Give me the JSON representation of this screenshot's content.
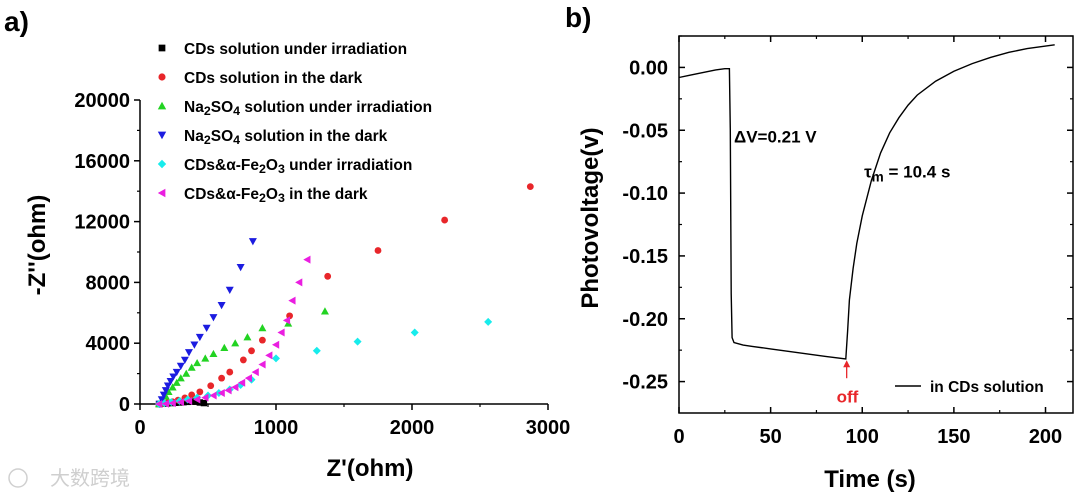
{
  "watermark": "大数跨境",
  "chart_data": [
    {
      "panel_label": "a)",
      "type": "scatter",
      "title": "",
      "xlabel": "Z'(ohm)",
      "ylabel": "-Z''(ohm)",
      "xlim": [
        0,
        3000
      ],
      "ylim": [
        0,
        20000
      ],
      "xticks": [
        0,
        1000,
        2000,
        3000
      ],
      "yticks": [
        0,
        4000,
        8000,
        12000,
        16000,
        20000
      ],
      "legend_position": "top-center",
      "series": [
        {
          "name": "CDs solution under irradiation",
          "name_parts": [
            "CDs solution under irradiation"
          ],
          "marker": "square",
          "color": "#000000",
          "x": [
            140,
            170,
            200,
            230,
            260,
            290,
            320,
            350,
            380,
            410,
            440,
            470
          ],
          "y": [
            0,
            20,
            40,
            60,
            80,
            100,
            120,
            140,
            160,
            150,
            100,
            60
          ]
        },
        {
          "name": "CDs solution in the dark",
          "name_parts": [
            "CDs solution in the dark"
          ],
          "marker": "circle",
          "color": "#e8262a",
          "x": [
            140,
            170,
            200,
            240,
            280,
            330,
            380,
            440,
            520,
            600,
            660,
            760,
            820,
            900,
            1100,
            1380,
            1750,
            2240,
            2870
          ],
          "y": [
            0,
            30,
            80,
            150,
            250,
            400,
            600,
            800,
            1200,
            1700,
            2100,
            2900,
            3500,
            4200,
            5800,
            8400,
            10100,
            12100,
            14300
          ]
        },
        {
          "name": "Na2SO4 solution under irradiation",
          "name_parts": [
            "Na",
            "2",
            "SO",
            "4",
            " solution under irradiation"
          ],
          "marker": "triangle-up",
          "color": "#22d322",
          "x": [
            140,
            170,
            190,
            210,
            240,
            270,
            300,
            340,
            380,
            420,
            480,
            540,
            620,
            700,
            790,
            900,
            1090,
            1360
          ],
          "y": [
            0,
            200,
            500,
            800,
            1100,
            1400,
            1700,
            2000,
            2400,
            2700,
            3000,
            3300,
            3700,
            4000,
            4400,
            5000,
            5300,
            6100
          ]
        },
        {
          "name": "Na2SO4 solution in the dark",
          "name_parts": [
            "Na",
            "2",
            "SO",
            "4",
            " solution in the dark"
          ],
          "marker": "triangle-down",
          "color": "#1c1ce0",
          "x": [
            145,
            160,
            175,
            190,
            205,
            225,
            245,
            270,
            300,
            330,
            360,
            400,
            440,
            490,
            540,
            600,
            660,
            740,
            830
          ],
          "y": [
            0,
            300,
            600,
            900,
            1200,
            1500,
            1800,
            2100,
            2500,
            2900,
            3400,
            3900,
            4400,
            5000,
            5700,
            6500,
            7500,
            9000,
            10700
          ]
        },
        {
          "name": "CDs&α-Fe2O3 under irradiation",
          "name_parts": [
            "CDs&α-Fe",
            "2",
            "O",
            "3",
            " under irradiation"
          ],
          "marker": "diamond",
          "color": "#17ecec",
          "x": [
            140,
            180,
            230,
            290,
            350,
            420,
            500,
            580,
            660,
            740,
            820,
            1000,
            1300,
            1600,
            2020,
            2560
          ],
          "y": [
            0,
            50,
            120,
            200,
            300,
            420,
            560,
            720,
            950,
            1250,
            1600,
            3000,
            3500,
            4100,
            4700,
            5400
          ]
        },
        {
          "name": "CDs&α-Fe2O3 in the dark",
          "name_parts": [
            "CDs&α-Fe",
            "2",
            "O",
            "3",
            " in the dark"
          ],
          "marker": "triangle-left",
          "color": "#ea1ee0",
          "x": [
            140,
            190,
            240,
            300,
            360,
            420,
            480,
            540,
            600,
            650,
            700,
            750,
            800,
            850,
            900,
            950,
            1000,
            1040,
            1080,
            1120,
            1170,
            1230
          ],
          "y": [
            0,
            20,
            60,
            120,
            200,
            300,
            420,
            560,
            720,
            900,
            1100,
            1400,
            1700,
            2100,
            2600,
            3200,
            3900,
            4700,
            5500,
            6800,
            8000,
            9500
          ]
        }
      ]
    },
    {
      "panel_label": "b)",
      "type": "line",
      "title": "",
      "xlabel": "Time (s)",
      "ylabel": "Photovoltage(v)",
      "xlim": [
        0,
        215
      ],
      "ylim": [
        -0.275,
        0.025
      ],
      "xticks": [
        0,
        50,
        100,
        150,
        200
      ],
      "yticks": [
        0.0,
        -0.05,
        -0.1,
        -0.15,
        -0.2,
        -0.25
      ],
      "ytick_labels": [
        "0.00",
        "-0.05",
        "-0.10",
        "-0.15",
        "-0.20",
        "-0.25"
      ],
      "legend_position": "bottom-right",
      "series": [
        {
          "name": "in CDs solution",
          "color": "#000000",
          "x": [
            0,
            5,
            10,
            15,
            20,
            25,
            27.5,
            28,
            28.5,
            29,
            30,
            35,
            40,
            50,
            60,
            70,
            80,
            91,
            92,
            93,
            95,
            97,
            100,
            105,
            110,
            115,
            120,
            125,
            130,
            140,
            150,
            160,
            170,
            180,
            190,
            205
          ],
          "y": [
            -0.008,
            -0.0065,
            -0.005,
            -0.0035,
            -0.002,
            -0.001,
            -0.001,
            -0.05,
            -0.18,
            -0.215,
            -0.219,
            -0.221,
            -0.222,
            -0.224,
            -0.226,
            -0.228,
            -0.23,
            -0.232,
            -0.21,
            -0.185,
            -0.16,
            -0.14,
            -0.118,
            -0.09,
            -0.068,
            -0.052,
            -0.04,
            -0.03,
            -0.022,
            -0.011,
            -0.003,
            0.003,
            0.008,
            0.012,
            0.015,
            0.018
          ]
        }
      ],
      "annotations": [
        {
          "text": "ΔV=0.21 V",
          "x": 30,
          "y": -0.055
        },
        {
          "text_parts": [
            "τ",
            "m",
            " = 10.4 s"
          ],
          "x": 101,
          "y": -0.083
        },
        {
          "text": "off",
          "x": 86,
          "y": -0.262,
          "color": "#e8262a",
          "arrow_to": [
            91.5,
            -0.233
          ]
        }
      ]
    }
  ]
}
